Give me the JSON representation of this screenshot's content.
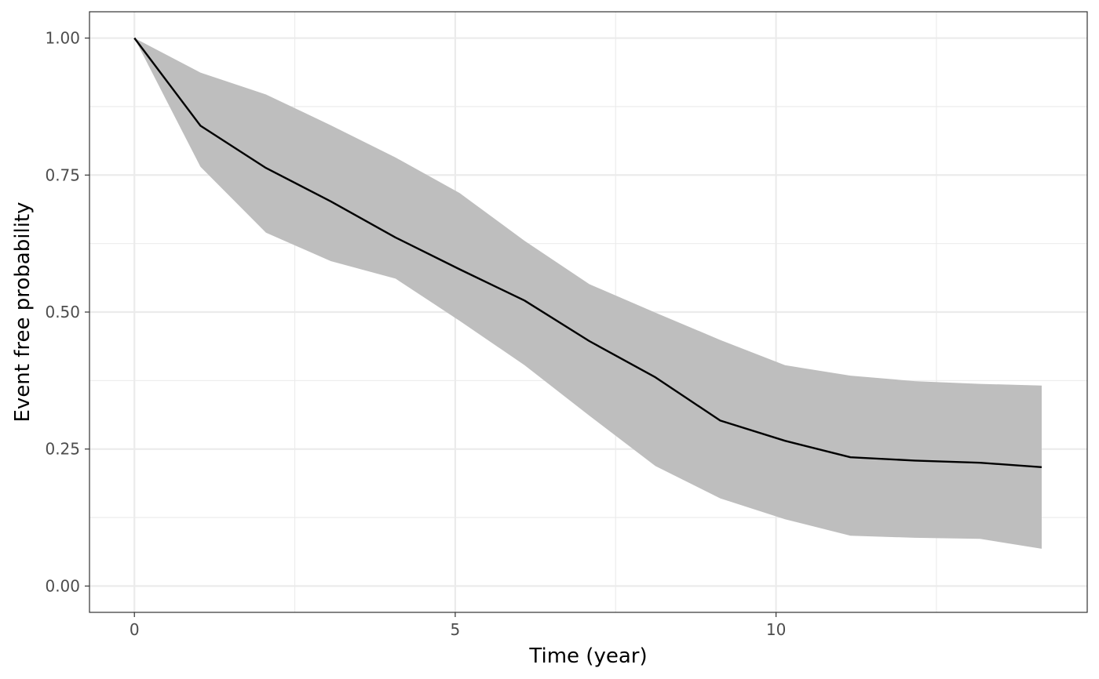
{
  "chart_data": {
    "type": "line",
    "xlabel": "Time (year)",
    "ylabel": "Event free probability",
    "xlim": [
      -0.7,
      14.85
    ],
    "ylim": [
      -0.048,
      1.048
    ],
    "x_major_ticks": [
      0,
      5,
      10
    ],
    "x_tick_labels": [
      "0",
      "5",
      "10"
    ],
    "x_minor_ticks": [
      2.5,
      7.5,
      12.5
    ],
    "y_major_ticks": [
      0,
      0.25,
      0.5,
      0.75,
      1.0
    ],
    "y_tick_labels": [
      "0.00",
      "0.25",
      "0.50",
      "0.75",
      "1.00"
    ],
    "y_minor_ticks": [
      0.125,
      0.375,
      0.625,
      0.875
    ],
    "grid": true,
    "series": [
      {
        "x": [
          0,
          1.03,
          2.05,
          3.06,
          4.07,
          5.07,
          6.08,
          7.09,
          8.12,
          9.13,
          10.14,
          11.16,
          12.16,
          13.18,
          14.14
        ],
        "y": [
          1.0,
          0.84,
          0.763,
          0.702,
          0.636,
          0.578,
          0.521,
          0.447,
          0.381,
          0.302,
          0.265,
          0.235,
          0.229,
          0.225,
          0.217
        ],
        "lower": [
          1.0,
          0.765,
          0.645,
          0.593,
          0.561,
          0.484,
          0.403,
          0.311,
          0.219,
          0.16,
          0.122,
          0.092,
          0.088,
          0.086,
          0.068
        ],
        "upper": [
          1.0,
          0.937,
          0.897,
          0.841,
          0.782,
          0.717,
          0.63,
          0.551,
          0.499,
          0.449,
          0.403,
          0.384,
          0.374,
          0.369,
          0.366
        ],
        "line_color": "#000000",
        "band_color": "#bebebe"
      }
    ]
  }
}
